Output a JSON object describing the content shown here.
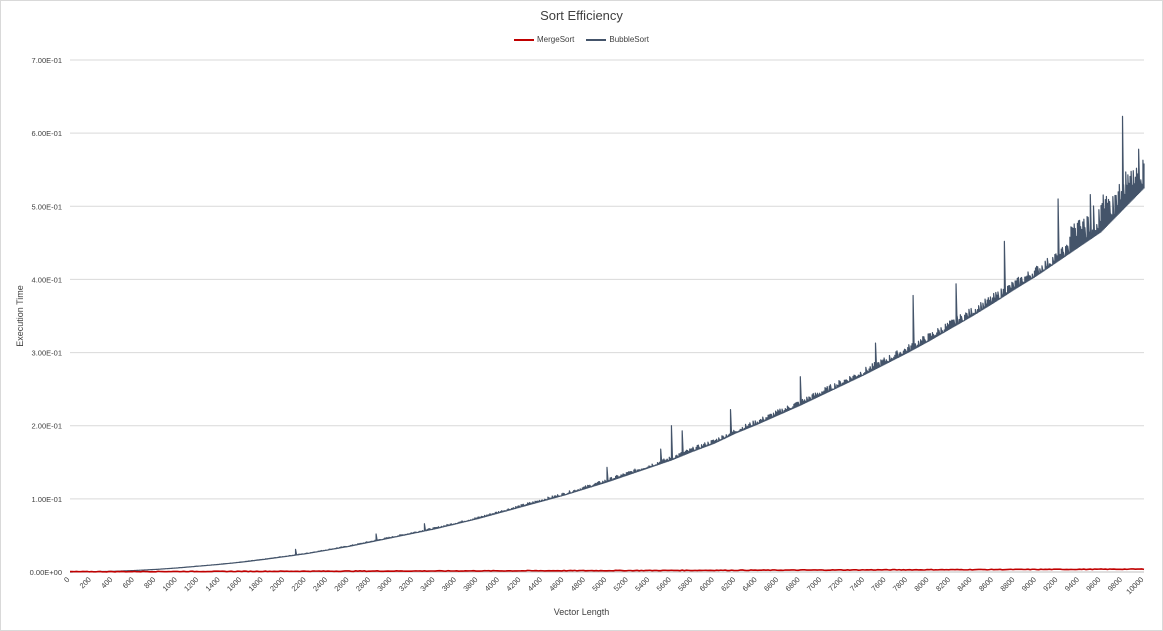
{
  "chart_data": {
    "type": "line",
    "title": "Sort Efficiency",
    "xlabel": "Vector Length",
    "ylabel": "Execution Time",
    "xlim": [
      0,
      10000
    ],
    "ylim": [
      0,
      0.7
    ],
    "y_ticks": [
      "0.00E+00",
      "1.00E-01",
      "2.00E-01",
      "3.00E-01",
      "4.00E-01",
      "5.00E-01",
      "6.00E-01",
      "7.00E-01"
    ],
    "y_tick_values": [
      0,
      0.1,
      0.2,
      0.3,
      0.4,
      0.5,
      0.6,
      0.7
    ],
    "x_ticks": [
      "0",
      "200",
      "400",
      "600",
      "800",
      "1000",
      "1200",
      "1400",
      "1600",
      "1800",
      "2000",
      "2200",
      "2400",
      "2600",
      "2800",
      "3000",
      "3200",
      "3400",
      "3600",
      "3800",
      "4000",
      "4200",
      "4400",
      "4600",
      "4800",
      "5000",
      "5200",
      "5400",
      "5600",
      "5800",
      "6000",
      "6200",
      "6400",
      "6600",
      "6800",
      "7000",
      "7200",
      "7400",
      "7600",
      "7800",
      "8000",
      "8200",
      "8400",
      "8600",
      "8800",
      "9000",
      "9200",
      "9400",
      "9600",
      "9800",
      "10000"
    ],
    "grid": true,
    "legend_position": "top",
    "series": [
      {
        "name": "MergeSort",
        "color": "#c00000",
        "x": [
          0,
          1000,
          2000,
          3000,
          4000,
          5000,
          6000,
          7000,
          8000,
          9000,
          10000
        ],
        "y": [
          0.0,
          0.0003,
          0.0006,
          0.0009,
          0.0012,
          0.0015,
          0.0019,
          0.0023,
          0.0027,
          0.0031,
          0.0035
        ]
      },
      {
        "name": "BubbleSort",
        "color": "#44546a",
        "x": [
          0,
          400,
          600,
          800,
          1000,
          1200,
          1400,
          1600,
          1800,
          2000,
          2200,
          2400,
          2600,
          2800,
          3000,
          3200,
          3400,
          3600,
          3800,
          4000,
          4200,
          4400,
          4600,
          4800,
          5000,
          5200,
          5400,
          5600,
          5800,
          6000,
          6200,
          6400,
          6600,
          6800,
          7000,
          7200,
          7400,
          7600,
          7800,
          8000,
          8200,
          8400,
          8600,
          8800,
          9000,
          9200,
          9400,
          9600,
          9800,
          10000
        ],
        "y": [
          0.0,
          0.0009,
          0.002,
          0.0035,
          0.0055,
          0.008,
          0.0105,
          0.0135,
          0.017,
          0.021,
          0.025,
          0.03,
          0.035,
          0.041,
          0.047,
          0.053,
          0.059,
          0.066,
          0.073,
          0.081,
          0.089,
          0.097,
          0.105,
          0.114,
          0.123,
          0.133,
          0.143,
          0.153,
          0.165,
          0.176,
          0.19,
          0.202,
          0.215,
          0.228,
          0.242,
          0.256,
          0.27,
          0.285,
          0.3,
          0.316,
          0.333,
          0.35,
          0.368,
          0.387,
          0.405,
          0.425,
          0.445,
          0.465,
          0.495,
          0.525
        ]
      }
    ],
    "spikes": [
      {
        "series": "BubbleSort",
        "x": 2100,
        "y": 0.031
      },
      {
        "series": "BubbleSort",
        "x": 2850,
        "y": 0.052
      },
      {
        "series": "BubbleSort",
        "x": 3300,
        "y": 0.066
      },
      {
        "series": "BubbleSort",
        "x": 5000,
        "y": 0.143
      },
      {
        "series": "BubbleSort",
        "x": 5500,
        "y": 0.168
      },
      {
        "series": "BubbleSort",
        "x": 5600,
        "y": 0.2
      },
      {
        "series": "BubbleSort",
        "x": 5700,
        "y": 0.193
      },
      {
        "series": "BubbleSort",
        "x": 6150,
        "y": 0.222
      },
      {
        "series": "BubbleSort",
        "x": 6800,
        "y": 0.267
      },
      {
        "series": "BubbleSort",
        "x": 7500,
        "y": 0.313
      },
      {
        "series": "BubbleSort",
        "x": 7850,
        "y": 0.378
      },
      {
        "series": "BubbleSort",
        "x": 8250,
        "y": 0.394
      },
      {
        "series": "BubbleSort",
        "x": 8700,
        "y": 0.452
      },
      {
        "series": "BubbleSort",
        "x": 9200,
        "y": 0.51
      },
      {
        "series": "BubbleSort",
        "x": 9500,
        "y": 0.516
      },
      {
        "series": "BubbleSort",
        "x": 9800,
        "y": 0.623
      },
      {
        "series": "BubbleSort",
        "x": 9950,
        "y": 0.578
      }
    ]
  }
}
